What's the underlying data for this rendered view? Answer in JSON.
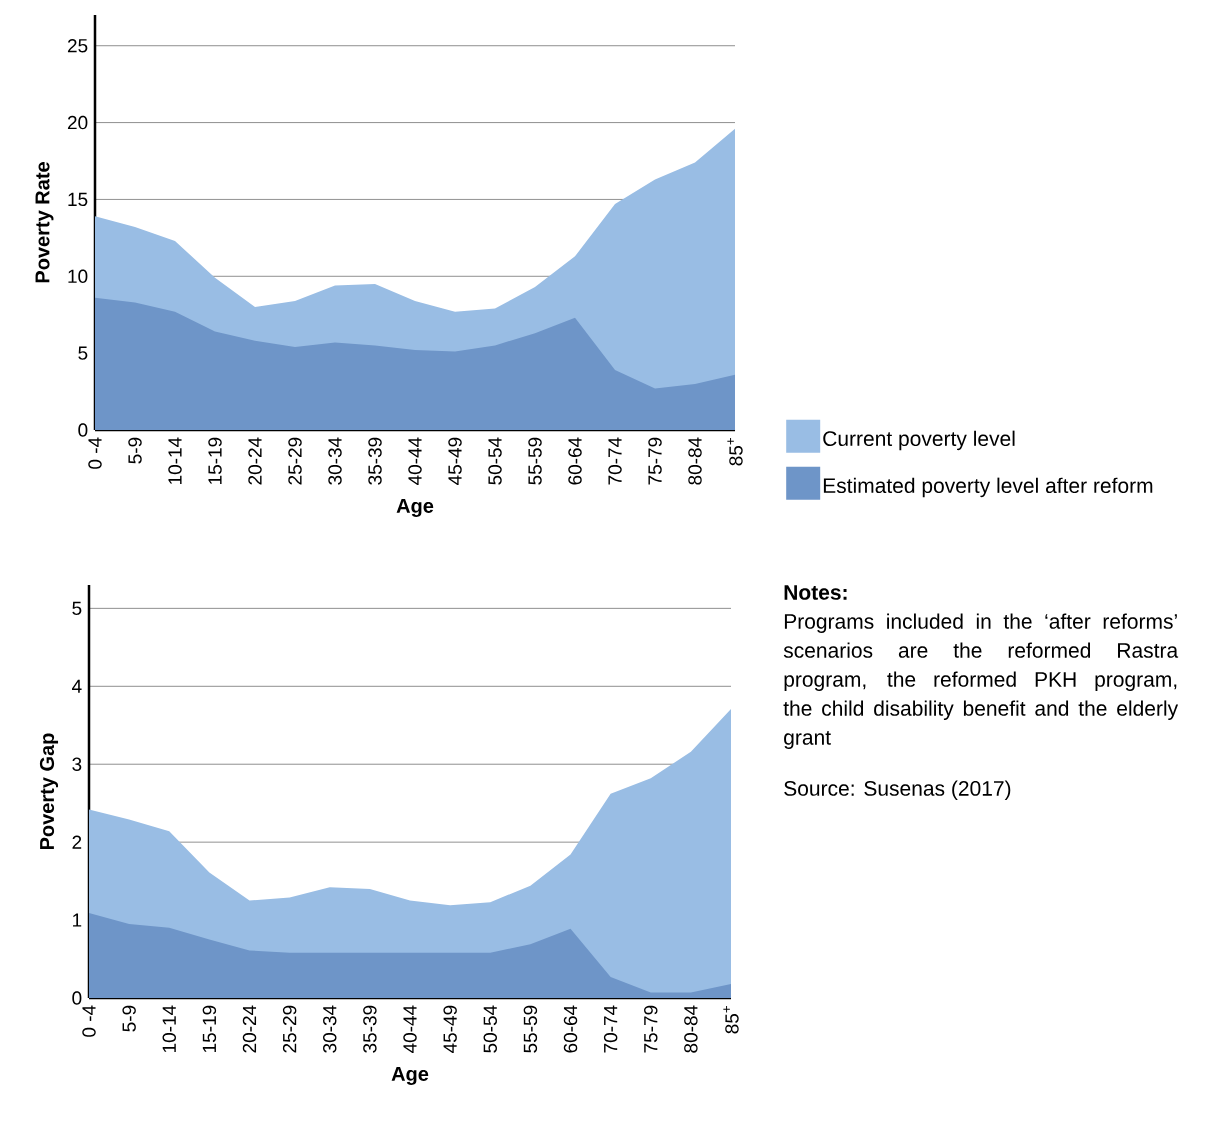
{
  "chart_data": [
    {
      "type": "area",
      "xlabel": "Age",
      "ylabel": "Poverty Rate",
      "categories": [
        "0 -4",
        "5-9",
        "10-14",
        "15-19",
        "20-24",
        "25-29",
        "30-34",
        "35-39",
        "40-44",
        "45-49",
        "50-54",
        "55-59",
        "60-64",
        "70-74",
        "75-79",
        "80-84",
        "85$^{+}$"
      ],
      "series": [
        {
          "name": "Current poverty level",
          "color": "#99bde4",
          "values": [
            13.9,
            13.2,
            12.3,
            9.9,
            8.0,
            8.4,
            9.4,
            9.5,
            8.4,
            7.7,
            7.9,
            9.3,
            11.3,
            14.7,
            16.3,
            17.4,
            19.6
          ]
        },
        {
          "name": "Estimated poverty level after reform",
          "color": "#6e95c8",
          "values": [
            8.6,
            8.3,
            7.7,
            6.4,
            5.8,
            5.4,
            5.7,
            5.5,
            5.2,
            5.1,
            5.5,
            6.3,
            7.3,
            3.9,
            2.7,
            3.0,
            3.6
          ]
        }
      ],
      "ylim": [
        0,
        27
      ],
      "yticks": [
        0,
        5,
        10,
        15,
        20,
        25
      ],
      "grid": "y",
      "legend": "right"
    },
    {
      "type": "area",
      "xlabel": "Age",
      "ylabel": "Poverty Gap",
      "categories": [
        "0 -4",
        "5-9",
        "10-14",
        "15-19",
        "20-24",
        "25-29",
        "30-34",
        "35-39",
        "40-44",
        "45-49",
        "50-54",
        "55-59",
        "60-64",
        "70-74",
        "75-79",
        "80-84",
        "85$^{+}$"
      ],
      "series": [
        {
          "color": "#99bde4",
          "values": [
            2.42,
            2.29,
            2.14,
            1.61,
            1.25,
            1.29,
            1.42,
            1.4,
            1.25,
            1.19,
            1.23,
            1.44,
            1.84,
            2.62,
            2.82,
            3.16,
            3.71
          ]
        },
        {
          "color": "#6e95c8",
          "values": [
            1.09,
            0.95,
            0.9,
            0.75,
            0.61,
            0.58,
            0.58,
            0.58,
            0.58,
            0.58,
            0.58,
            0.69,
            0.89,
            0.27,
            0.07,
            0.07,
            0.18
          ]
        }
      ],
      "ylim": [
        0,
        5.3
      ],
      "yticks": [
        0,
        1,
        2,
        3,
        4,
        5
      ],
      "grid": "y",
      "annotations": [
        "Notes:",
        "Programs included in the ‘after reforms’ scenarios are the reformed Rastra program, the reformed PKH program, the child disability benefit and the elderly grant",
        "Source: Susenas (2017)"
      ]
    }
  ]
}
